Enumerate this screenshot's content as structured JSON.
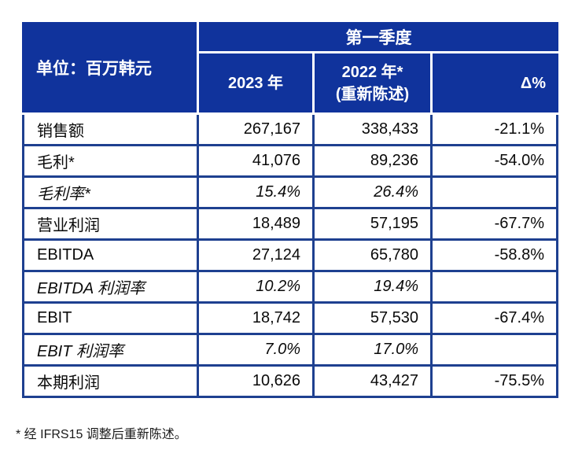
{
  "table": {
    "unit_label": "单位：百万韩元",
    "quarter_header": "第一季度",
    "columns": {
      "y2023": "2023 年",
      "y2022_line1": "2022 年*",
      "y2022_line2": "(重新陈述)",
      "delta": "Δ%"
    },
    "rows": [
      {
        "label": "销售额",
        "y2023": "267,167",
        "y2022": "338,433",
        "delta": "-21.1%"
      },
      {
        "label": "毛利*",
        "y2023": "41,076",
        "y2022": "89,236",
        "delta": "-54.0%"
      },
      {
        "label": "毛利率*",
        "y2023": "15.4%",
        "y2022": "26.4%",
        "delta": ""
      },
      {
        "label": "营业利润",
        "y2023": "18,489",
        "y2022": "57,195",
        "delta": "-67.7%"
      },
      {
        "label": "EBITDA",
        "y2023": "27,124",
        "y2022": "65,780",
        "delta": "-58.8%"
      },
      {
        "label": "EBITDA 利润率",
        "y2023": "10.2%",
        "y2022": "19.4%",
        "delta": ""
      },
      {
        "label": "EBIT",
        "y2023": "18,742",
        "y2022": "57,530",
        "delta": "-67.4%"
      },
      {
        "label": "EBIT 利润率",
        "y2023": "7.0%",
        "y2022": "17.0%",
        "delta": ""
      },
      {
        "label": "本期利润",
        "y2023": "10,626",
        "y2022": "43,427",
        "delta": "-75.5%"
      }
    ]
  },
  "footnote": "* 经 IFRS15 调整后重新陈述。",
  "colors": {
    "header_bg": "#10339C",
    "border": "#1E4090",
    "header_text": "#FFFFFF",
    "body_text": "#0A0A0A"
  }
}
